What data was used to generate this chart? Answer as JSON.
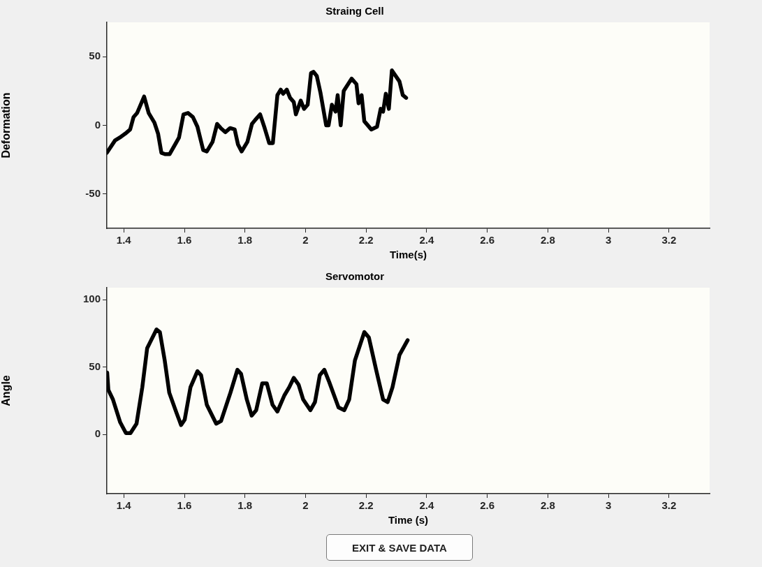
{
  "chart_data": [
    {
      "type": "line",
      "title": "Straing Cell",
      "xlabel": "Time(s)",
      "ylabel": "Deformation",
      "xlim": [
        1.344,
        3.334
      ],
      "xticks": [
        1.4,
        1.6,
        1.8,
        2,
        2.2,
        2.4,
        2.6,
        2.8,
        3,
        3.2
      ],
      "ylim": [
        -75,
        75
      ],
      "yticks": [
        -50,
        0,
        50
      ],
      "grid": false,
      "legend": false,
      "series": [
        {
          "color": "#000000",
          "x": [
            1.344,
            1.371,
            1.386,
            1.405,
            1.421,
            1.432,
            1.444,
            1.467,
            1.482,
            1.501,
            1.513,
            1.524,
            1.536,
            1.551,
            1.582,
            1.597,
            1.612,
            1.628,
            1.643,
            1.662,
            1.674,
            1.693,
            1.708,
            1.72,
            1.735,
            1.751,
            1.766,
            1.777,
            1.789,
            1.808,
            1.823,
            1.834,
            1.85,
            1.865,
            1.88,
            1.892,
            1.907,
            1.918,
            1.926,
            1.938,
            1.949,
            1.961,
            1.968,
            1.984,
            1.995,
            2.007,
            2.018,
            2.026,
            2.037,
            2.049,
            2.068,
            2.076,
            2.087,
            2.099,
            2.106,
            2.116,
            2.126,
            2.152,
            2.168,
            2.175,
            2.185,
            2.194,
            2.217,
            2.236,
            2.248,
            2.256,
            2.265,
            2.275,
            2.285,
            2.31,
            2.321,
            2.332
          ],
          "values": [
            -20,
            -11,
            -9,
            -6,
            -3,
            6,
            9,
            21,
            9,
            2,
            -6,
            -20,
            -21,
            -21,
            -9,
            8,
            9,
            6,
            -1,
            -18,
            -19,
            -12,
            1,
            -2,
            -5,
            -2,
            -3,
            -14,
            -19,
            -12,
            1,
            4,
            8,
            -2,
            -13,
            -13,
            22,
            26,
            23,
            26,
            20,
            17,
            8,
            18,
            12,
            15,
            38,
            39,
            36,
            24,
            0,
            0,
            15,
            10,
            22,
            0,
            25,
            34,
            30,
            16,
            22,
            3,
            -3,
            -1,
            12,
            10,
            23,
            12,
            40,
            32,
            22,
            20
          ]
        }
      ]
    },
    {
      "type": "line",
      "title": "Servomotor",
      "xlabel": "Time (s)",
      "ylabel": "Angle",
      "xlim": [
        1.344,
        3.334
      ],
      "xticks": [
        1.4,
        1.6,
        1.8,
        2,
        2.2,
        2.4,
        2.6,
        2.8,
        3,
        3.2
      ],
      "ylim": [
        -44,
        109
      ],
      "yticks": [
        0,
        50,
        100
      ],
      "grid": false,
      "legend": false,
      "annotations": [
        "EXIT & SAVE DATA"
      ],
      "series": [
        {
          "color": "#000000",
          "x": [
            1.345,
            1.349,
            1.364,
            1.388,
            1.407,
            1.422,
            1.442,
            1.461,
            1.477,
            1.488,
            1.508,
            1.519,
            1.535,
            1.55,
            1.574,
            1.589,
            1.601,
            1.62,
            1.643,
            1.655,
            1.674,
            1.705,
            1.721,
            1.752,
            1.775,
            1.787,
            1.806,
            1.822,
            1.837,
            1.857,
            1.872,
            1.891,
            1.907,
            1.93,
            1.946,
            1.961,
            1.977,
            1.992,
            2.016,
            2.031,
            2.047,
            2.062,
            2.078,
            2.109,
            2.128,
            2.144,
            2.163,
            2.194,
            2.209,
            2.233,
            2.256,
            2.271,
            2.287,
            2.31,
            2.337
          ],
          "values": [
            46,
            33,
            26,
            9,
            1,
            1,
            8,
            35,
            64,
            69,
            78,
            76,
            55,
            31,
            16,
            7,
            11,
            35,
            47,
            44,
            22,
            8,
            10,
            31,
            48,
            45,
            26,
            14,
            18,
            38,
            38,
            22,
            17,
            29,
            35,
            42,
            37,
            26,
            18,
            24,
            44,
            48,
            39,
            20,
            18,
            26,
            55,
            76,
            72,
            48,
            26,
            24,
            35,
            59,
            70
          ]
        }
      ]
    }
  ]
}
